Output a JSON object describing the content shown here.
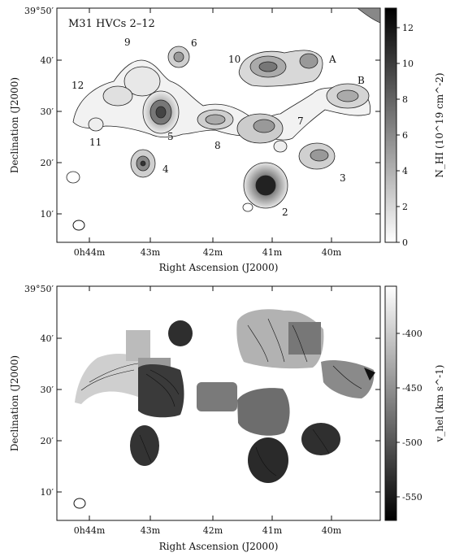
{
  "top_panel": {
    "title": "M31 HVCs 2–12",
    "dec_labels": [
      "39°50′",
      "40′",
      "30′",
      "20′",
      "10′"
    ],
    "ra_labels": [
      "0h44m",
      "43m",
      "42m",
      "41m",
      "40m"
    ],
    "xlabel": "Right Ascension (J2000)",
    "ylabel": "Declination (J2000)",
    "colorbar_label": "N_HI (10^19 cm^-2)",
    "colorbar_ticks": [
      "12",
      "10",
      "8",
      "6",
      "4",
      "2",
      "0"
    ],
    "cloud_labels": [
      "2",
      "3",
      "4",
      "5",
      "6",
      "7",
      "8",
      "9",
      "10",
      "11",
      "12",
      "A",
      "B"
    ]
  },
  "bottom_panel": {
    "dec_labels": [
      "39°50′",
      "40′",
      "30′",
      "20′",
      "10′"
    ],
    "ra_labels": [
      "0h44m",
      "43m",
      "42m",
      "41m",
      "40m"
    ],
    "xlabel": "Right Ascension (J2000)",
    "ylabel": "Declination (J2000)",
    "colorbar_label": "v_hel (km s^-1)",
    "colorbar_ticks": [
      "-400",
      "-450",
      "-500",
      "-550"
    ]
  },
  "colors": {
    "ink": "#111111",
    "paper": "#ffffff"
  }
}
